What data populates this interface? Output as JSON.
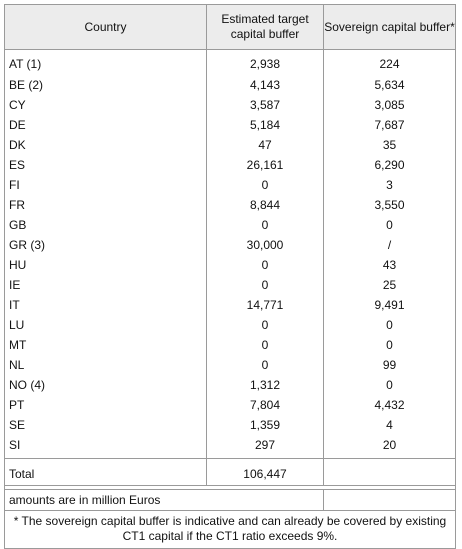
{
  "headers": {
    "country": "Country",
    "estimated": "Estimated target capital buffer",
    "sovereign": "Sovereign capital buffer*"
  },
  "rows": [
    {
      "country": "AT (1)",
      "estimated": "2,938",
      "sovereign": "224"
    },
    {
      "country": "BE (2)",
      "estimated": "4,143",
      "sovereign": "5,634"
    },
    {
      "country": "CY",
      "estimated": "3,587",
      "sovereign": "3,085"
    },
    {
      "country": "DE",
      "estimated": "5,184",
      "sovereign": "7,687"
    },
    {
      "country": "DK",
      "estimated": "47",
      "sovereign": "35"
    },
    {
      "country": "ES",
      "estimated": "26,161",
      "sovereign": "6,290"
    },
    {
      "country": "FI",
      "estimated": "0",
      "sovereign": "3"
    },
    {
      "country": "FR",
      "estimated": "8,844",
      "sovereign": "3,550"
    },
    {
      "country": "GB",
      "estimated": "0",
      "sovereign": "0"
    },
    {
      "country": "GR (3)",
      "estimated": "30,000",
      "sovereign": "/"
    },
    {
      "country": "HU",
      "estimated": "0",
      "sovereign": "43"
    },
    {
      "country": "IE",
      "estimated": "0",
      "sovereign": "25"
    },
    {
      "country": "IT",
      "estimated": "14,771",
      "sovereign": "9,491"
    },
    {
      "country": "LU",
      "estimated": "0",
      "sovereign": "0"
    },
    {
      "country": "MT",
      "estimated": "0",
      "sovereign": "0"
    },
    {
      "country": "NL",
      "estimated": "0",
      "sovereign": "99"
    },
    {
      "country": "NO (4)",
      "estimated": "1,312",
      "sovereign": "0"
    },
    {
      "country": "PT",
      "estimated": "7,804",
      "sovereign": "4,432"
    },
    {
      "country": "SE",
      "estimated": "1,359",
      "sovereign": "4"
    },
    {
      "country": "SI",
      "estimated": "297",
      "sovereign": "20"
    }
  ],
  "total": {
    "label": "Total",
    "estimated": "106,447",
    "sovereign": ""
  },
  "units_note": "amounts are in million Euros",
  "footnote": "* The sovereign capital buffer is indicative and can already be covered by existing CT1 capital if the CT1 ratio exceeds 9%."
}
